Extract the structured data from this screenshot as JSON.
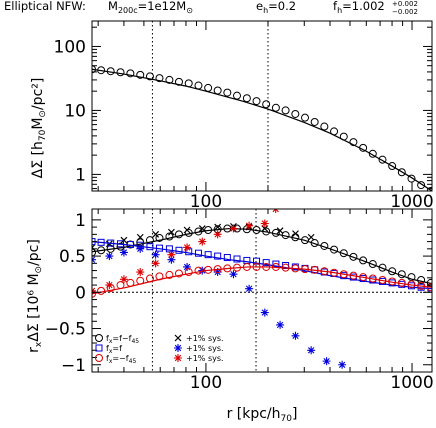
{
  "header": {
    "model": "Elliptical NFW:",
    "mass_label": "M",
    "mass_sub": "200c",
    "mass_value": "=1e12M",
    "mass_unit_sub": "⊙",
    "eh_label": "e",
    "eh_sub": "h",
    "eh_value": "=0.2",
    "fh_label": "f",
    "fh_sub": "h",
    "fh_value": "=1.002",
    "fh_err_up": "+0.002",
    "fh_err_down": "−0.002"
  },
  "chart_data": [
    {
      "type": "line",
      "panel": "top",
      "xscale": "log",
      "yscale": "log",
      "xlim": [
        28,
        1250
      ],
      "ylim": [
        0.55,
        250
      ],
      "ylabel_main": "ΔΣ [h",
      "ylabel_sub": "70",
      "ylabel_rest": "M",
      "ylabel_sun": "⊙",
      "ylabel_end": "/pc²]",
      "yticks": [
        1,
        10,
        100
      ],
      "ytick_labels": [
        "1",
        "10",
        "100"
      ],
      "xticks": [
        100,
        1000
      ],
      "xtick_labels": [
        "100",
        "1000"
      ],
      "vlines": [
        55,
        200
      ],
      "series": [
        {
          "style": "line",
          "x": [
            28,
            40,
            60,
            80,
            100,
            150,
            200,
            300,
            400,
            600,
            800,
            1000,
            1250
          ],
          "y": [
            44,
            37,
            29,
            24,
            20,
            14,
            10.5,
            6.5,
            4.4,
            2.3,
            1.35,
            0.88,
            0.55
          ]
        },
        {
          "style": "circle",
          "x": [
            28,
            31,
            34.5,
            38.5,
            43,
            48,
            53.5,
            59.5,
            66.5,
            74,
            82.5,
            92,
            102.5,
            114,
            127,
            141.5,
            158,
            176,
            196,
            218.5,
            243.5,
            271.5,
            302.5,
            337,
            375.5,
            418.5,
            466.5,
            519.5,
            579,
            645,
            719,
            801,
            892,
            994,
            1107,
            1234
          ],
          "y": [
            44,
            42.5,
            41,
            39.5,
            38,
            36,
            34,
            32,
            30,
            28,
            26.5,
            24.5,
            22.5,
            20.5,
            19,
            17,
            15.5,
            14,
            12.5,
            11,
            10,
            8.8,
            7.7,
            6.6,
            5.6,
            4.7,
            3.9,
            3.2,
            2.6,
            2.1,
            1.7,
            1.35,
            1.08,
            0.86,
            0.68,
            0.55
          ]
        }
      ]
    },
    {
      "type": "line",
      "panel": "bottom",
      "xscale": "log",
      "yscale": "linear",
      "xlim": [
        28,
        1250
      ],
      "ylim": [
        -1.1,
        1.15
      ],
      "xlabel_main": "r [kpc/h",
      "xlabel_sub": "70",
      "xlabel_end": "]",
      "ylabel_main": "r",
      "ylabel_sub": "x",
      "ylabel_rest": "ΔΣ [10⁶ M",
      "ylabel_sun": "⊙",
      "ylabel_end": "/pc]",
      "yticks": [
        -1,
        -0.5,
        0,
        0.5,
        1
      ],
      "ytick_labels": [
        "−1",
        "−0.5",
        "0",
        "0.5",
        "1"
      ],
      "xticks": [
        100,
        1000
      ],
      "xtick_labels": [
        "100",
        "1000"
      ],
      "vlines": [
        55,
        175
      ],
      "legend": {
        "placement": "bottom-left",
        "rows": [
          {
            "model": "f",
            "model_sub": "x",
            "model_rest": "=f−f",
            "model_sub2": "45",
            "sys": "+1% sys.",
            "color": "#000000",
            "marker": "circle",
            "star": "x"
          },
          {
            "model": "f",
            "model_sub": "x",
            "model_rest": "=f",
            "model_sub2": "",
            "sys": "+1% sys.",
            "color": "#0000dd",
            "marker": "square",
            "star": "star"
          },
          {
            "model": "f",
            "model_sub": "x",
            "model_rest": "=−f",
            "model_sub2": "45",
            "sys": "+1% sys.",
            "color": "#dd0000",
            "marker": "circle",
            "star": "star"
          }
        ]
      },
      "series": [
        {
          "color": "#000000",
          "style": "line",
          "x": [
            28,
            40,
            60,
            80,
            100,
            130,
            160,
            200,
            300,
            400,
            600,
            800,
            1000,
            1250
          ],
          "y": [
            0.56,
            0.62,
            0.72,
            0.8,
            0.85,
            0.88,
            0.87,
            0.83,
            0.72,
            0.6,
            0.42,
            0.28,
            0.18,
            0.12
          ]
        },
        {
          "color": "#000000",
          "style": "circle",
          "x": [
            28,
            31,
            34.5,
            38.5,
            43,
            48,
            53.5,
            59.5,
            66.5,
            74,
            82.5,
            92,
            102.5,
            114,
            127,
            141.5,
            158,
            176,
            196,
            218.5,
            243.5,
            271.5,
            302.5,
            337,
            375.5,
            418.5,
            466.5,
            519.5,
            579,
            645,
            719,
            801,
            892,
            994,
            1107,
            1234
          ],
          "y": [
            0.55,
            0.58,
            0.6,
            0.63,
            0.66,
            0.69,
            0.72,
            0.75,
            0.77,
            0.8,
            0.82,
            0.84,
            0.86,
            0.87,
            0.88,
            0.88,
            0.87,
            0.86,
            0.84,
            0.82,
            0.79,
            0.76,
            0.72,
            0.68,
            0.64,
            0.59,
            0.54,
            0.49,
            0.44,
            0.39,
            0.34,
            0.29,
            0.25,
            0.21,
            0.17,
            0.13
          ]
        },
        {
          "color": "#000000",
          "style": "x",
          "x": [
            28,
            34,
            40,
            48,
            57,
            68,
            81,
            96,
            114,
            136,
            162,
            193,
            229,
            272,
            324
          ],
          "y": [
            0.62,
            0.67,
            0.72,
            0.76,
            0.8,
            0.83,
            0.86,
            0.88,
            0.9,
            0.91,
            0.9,
            0.88,
            0.85,
            0.81,
            0.76
          ]
        },
        {
          "color": "#0000dd",
          "style": "line",
          "x": [
            28,
            40,
            60,
            80,
            100,
            130,
            160,
            200,
            300,
            400,
            600,
            800,
            1000,
            1250
          ],
          "y": [
            0.7,
            0.66,
            0.6,
            0.55,
            0.5,
            0.45,
            0.42,
            0.38,
            0.3,
            0.23,
            0.15,
            0.1,
            0.07,
            0.05
          ]
        },
        {
          "color": "#0000dd",
          "style": "square",
          "x": [
            28,
            31,
            34.5,
            38.5,
            43,
            48,
            53.5,
            59.5,
            66.5,
            74,
            82.5,
            92,
            102.5,
            114,
            127,
            141.5,
            158,
            176,
            196,
            218.5,
            243.5,
            271.5,
            302.5,
            337,
            375.5,
            418.5,
            466.5,
            519.5,
            579,
            645,
            719,
            801,
            892,
            994,
            1107,
            1234
          ],
          "y": [
            0.7,
            0.69,
            0.68,
            0.67,
            0.66,
            0.65,
            0.63,
            0.61,
            0.6,
            0.58,
            0.56,
            0.54,
            0.52,
            0.5,
            0.48,
            0.46,
            0.44,
            0.43,
            0.41,
            0.39,
            0.37,
            0.35,
            0.33,
            0.31,
            0.28,
            0.26,
            0.23,
            0.21,
            0.19,
            0.17,
            0.15,
            0.13,
            0.11,
            0.09,
            0.07,
            0.06
          ]
        },
        {
          "color": "#0000dd",
          "style": "star",
          "x": [
            28,
            34,
            40,
            48,
            57,
            68,
            81,
            96,
            114,
            136,
            162,
            193,
            229,
            272,
            324,
            385,
            458
          ],
          "y": [
            0.45,
            0.5,
            0.55,
            0.6,
            0.52,
            0.45,
            0.35,
            0.3,
            0.28,
            0.25,
            0.05,
            -0.28,
            -0.45,
            -0.6,
            -0.8,
            -0.95,
            -1.0
          ]
        },
        {
          "color": "#dd0000",
          "style": "line",
          "x": [
            28,
            40,
            60,
            80,
            100,
            130,
            160,
            200,
            300,
            400,
            600,
            800,
            1000,
            1250
          ],
          "y": [
            -0.02,
            0.06,
            0.18,
            0.25,
            0.3,
            0.33,
            0.35,
            0.35,
            0.32,
            0.28,
            0.2,
            0.14,
            0.1,
            0.07
          ]
        },
        {
          "color": "#dd0000",
          "style": "circle",
          "x": [
            28,
            31,
            34.5,
            38.5,
            43,
            48,
            53.5,
            59.5,
            66.5,
            74,
            82.5,
            92,
            102.5,
            114,
            127,
            141.5,
            158,
            176,
            196,
            218.5,
            243.5,
            271.5,
            302.5,
            337,
            375.5,
            418.5,
            466.5,
            519.5,
            579,
            645,
            719,
            801,
            892,
            994,
            1107,
            1234
          ],
          "y": [
            -0.02,
            0.02,
            0.06,
            0.1,
            0.13,
            0.16,
            0.19,
            0.22,
            0.24,
            0.26,
            0.28,
            0.3,
            0.31,
            0.32,
            0.33,
            0.34,
            0.35,
            0.35,
            0.35,
            0.35,
            0.34,
            0.33,
            0.32,
            0.31,
            0.29,
            0.27,
            0.25,
            0.23,
            0.21,
            0.19,
            0.17,
            0.15,
            0.13,
            0.11,
            0.09,
            0.07
          ]
        },
        {
          "color": "#dd0000",
          "style": "star",
          "x": [
            28,
            34,
            40,
            48,
            57,
            68,
            81,
            96,
            114,
            136,
            162,
            193,
            218
          ],
          "y": [
            0.02,
            0.1,
            0.18,
            0.28,
            0.4,
            0.52,
            0.62,
            0.7,
            0.8,
            0.88,
            0.92,
            0.95,
            1.15
          ]
        }
      ]
    }
  ]
}
